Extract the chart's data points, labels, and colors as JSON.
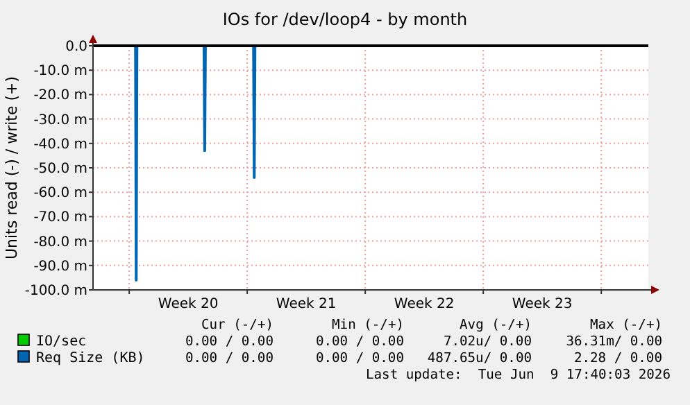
{
  "chart_data": {
    "type": "line",
    "title": "IOs for /dev/loop4 - by month",
    "ylabel": "Units read (-) / write (+)",
    "xlim": [
      "2026-05-08T20:30",
      "2026-06-10T19:00"
    ],
    "ylim": [
      -100,
      0
    ],
    "xticks": [
      {
        "value": "2026-05-11",
        "label": null
      },
      {
        "value": "2026-05-14T12:00",
        "label": "Week 20"
      },
      {
        "value": "2026-05-18",
        "label": null
      },
      {
        "value": "2026-05-21T12:00",
        "label": "Week 21"
      },
      {
        "value": "2026-05-25",
        "label": null
      },
      {
        "value": "2026-05-28T12:00",
        "label": "Week 22"
      },
      {
        "value": "2026-06-01",
        "label": null
      },
      {
        "value": "2026-06-04T12:00",
        "label": "Week 23"
      },
      {
        "value": "2026-06-08",
        "label": null
      }
    ],
    "yticks": [
      {
        "value": 0,
        "label": "0.0"
      },
      {
        "value": -10,
        "label": "-10.0 m"
      },
      {
        "value": -20,
        "label": "-20.0 m"
      },
      {
        "value": -30,
        "label": "-30.0 m"
      },
      {
        "value": -40,
        "label": "-40.0 m"
      },
      {
        "value": -50,
        "label": "-50.0 m"
      },
      {
        "value": -60,
        "label": "-60.0 m"
      },
      {
        "value": -70,
        "label": "-70.0 m"
      },
      {
        "value": -80,
        "label": "-80.0 m"
      },
      {
        "value": -90,
        "label": "-90.0 m"
      },
      {
        "value": -100,
        "label": "-100.0 m"
      }
    ],
    "grid": true,
    "legend": "bottom",
    "line_style": "solid",
    "series": [
      {
        "name": "IO/sec",
        "color": "#00cc00"
      },
      {
        "name": "Req Size (KB)",
        "color": "#0066b3",
        "x": [
          "2026-05-08T20:30",
          "2026-05-11T09:00",
          "2026-05-11T10:00",
          "2026-05-11T11:00",
          "2026-05-15T10:30",
          "2026-05-15T11:30",
          "2026-05-15T12:30",
          "2026-05-18T09:00",
          "2026-05-18T10:00",
          "2026-05-18T11:00",
          "2026-06-10T19:00"
        ],
        "values": [
          0,
          0,
          -96,
          0,
          0,
          -43,
          0,
          0,
          -54,
          0,
          0
        ]
      }
    ],
    "annotations": [
      "Cur (-/+)",
      "Min (-/+)",
      "Avg (-/+)",
      "Max (-/+)",
      "0.00 / 0.00",
      "0.00 / 0.00",
      "7.02u/ 0.00",
      "36.31m/ 0.00",
      "0.00 / 0.00",
      "0.00 / 0.00",
      "487.65u/ 0.00",
      "2.28 / 0.00",
      "Last update:  Tue Jun  9 17:40:03 2026"
    ]
  }
}
